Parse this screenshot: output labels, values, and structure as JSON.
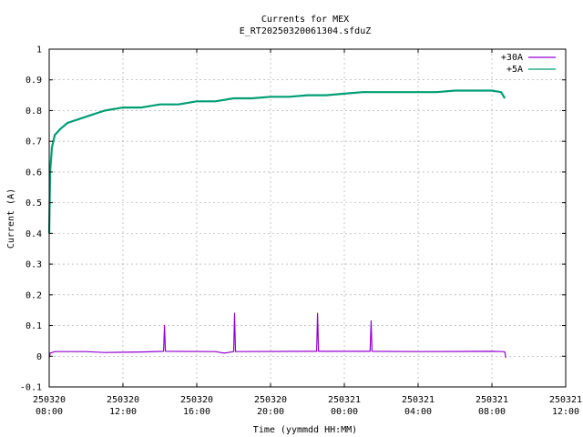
{
  "chart_data": {
    "type": "line",
    "title": "Currents for MEX",
    "subtitle": "E_RT20250320061304.sfduZ",
    "xlabel": "Time (yymmdd HH:MM)",
    "ylabel": "Current (A)",
    "x_unit": "hours",
    "xlim": [
      0,
      28
    ],
    "ylim": [
      -0.1,
      1.0
    ],
    "grid": true,
    "legend_position": "top-right",
    "x_ticks": [
      {
        "x": 0,
        "date": "250320",
        "time": "08:00"
      },
      {
        "x": 4,
        "date": "250320",
        "time": "12:00"
      },
      {
        "x": 8,
        "date": "250320",
        "time": "16:00"
      },
      {
        "x": 12,
        "date": "250320",
        "time": "20:00"
      },
      {
        "x": 16,
        "date": "250321",
        "time": "00:00"
      },
      {
        "x": 20,
        "date": "250321",
        "time": "04:00"
      },
      {
        "x": 24,
        "date": "250321",
        "time": "08:00"
      },
      {
        "x": 28,
        "date": "250321",
        "time": "12:00"
      }
    ],
    "y_ticks": [
      -0.1,
      0,
      0.1,
      0.2,
      0.3,
      0.4,
      0.5,
      0.6,
      0.7,
      0.8,
      0.9,
      1
    ],
    "y_tick_labels": [
      "-0.1",
      "0",
      "0.1",
      "0.2",
      "0.3",
      "0.4",
      "0.5",
      "0.6",
      "0.7",
      "0.8",
      "0.9",
      "1"
    ],
    "series": [
      {
        "name": "+30A",
        "color": "#9400d3",
        "points": [
          [
            0,
            -0.005
          ],
          [
            0.05,
            0.01
          ],
          [
            0.3,
            0.015
          ],
          [
            2,
            0.015
          ],
          [
            3,
            0.012
          ],
          [
            5,
            0.014
          ],
          [
            6.2,
            0.016
          ],
          [
            6.25,
            0.1
          ],
          [
            6.3,
            0.016
          ],
          [
            9,
            0.015
          ],
          [
            9.5,
            0.01
          ],
          [
            10,
            0.015
          ],
          [
            10.05,
            0.14
          ],
          [
            10.1,
            0.015
          ],
          [
            14,
            0.016
          ],
          [
            14.5,
            0.016
          ],
          [
            14.55,
            0.14
          ],
          [
            14.6,
            0.016
          ],
          [
            17,
            0.016
          ],
          [
            17.4,
            0.016
          ],
          [
            17.45,
            0.115
          ],
          [
            17.5,
            0.016
          ],
          [
            20,
            0.015
          ],
          [
            24,
            0.016
          ],
          [
            24.6,
            0.015
          ],
          [
            24.7,
            0.014
          ],
          [
            24.75,
            -0.005
          ]
        ]
      },
      {
        "name": "+5A",
        "color": "#009e73",
        "points": [
          [
            0,
            0.4
          ],
          [
            0.05,
            0.6
          ],
          [
            0.15,
            0.68
          ],
          [
            0.3,
            0.72
          ],
          [
            0.6,
            0.74
          ],
          [
            1,
            0.76
          ],
          [
            1.5,
            0.77
          ],
          [
            2,
            0.78
          ],
          [
            3,
            0.8
          ],
          [
            4,
            0.81
          ],
          [
            5,
            0.81
          ],
          [
            6,
            0.82
          ],
          [
            7,
            0.82
          ],
          [
            8,
            0.83
          ],
          [
            9,
            0.83
          ],
          [
            10,
            0.84
          ],
          [
            11,
            0.84
          ],
          [
            12,
            0.845
          ],
          [
            13,
            0.845
          ],
          [
            14,
            0.85
          ],
          [
            15,
            0.85
          ],
          [
            16,
            0.855
          ],
          [
            17,
            0.86
          ],
          [
            18,
            0.86
          ],
          [
            19,
            0.86
          ],
          [
            20,
            0.86
          ],
          [
            21,
            0.86
          ],
          [
            22,
            0.865
          ],
          [
            23,
            0.865
          ],
          [
            24,
            0.865
          ],
          [
            24.5,
            0.86
          ],
          [
            24.7,
            0.84
          ]
        ]
      }
    ]
  }
}
